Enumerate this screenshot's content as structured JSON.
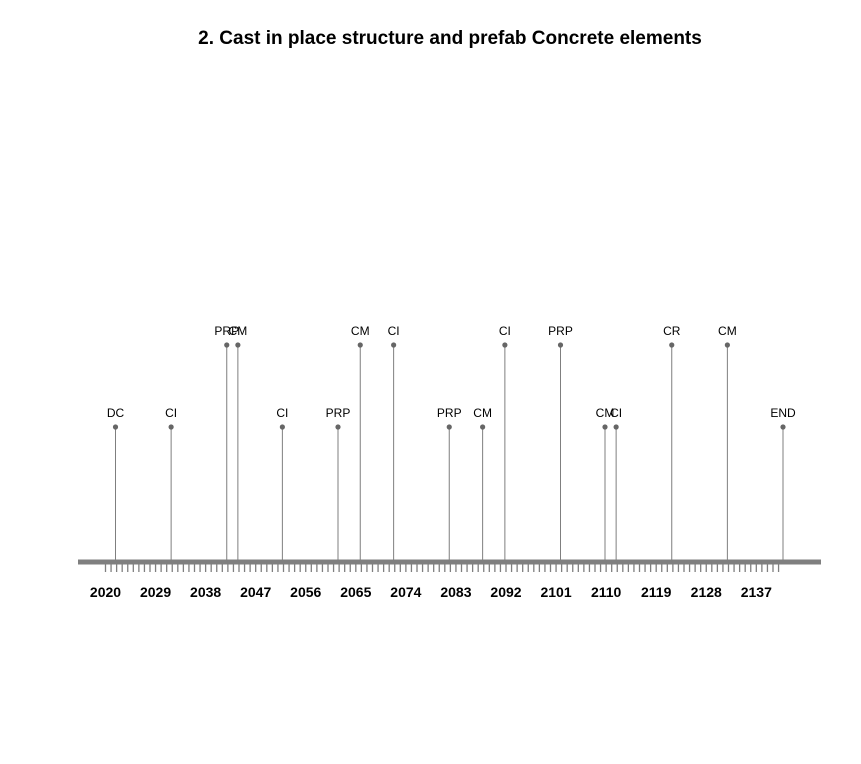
{
  "chart_data": {
    "type": "timeline",
    "title": "2. Cast in place structure and prefab Concrete elements",
    "x_range": [
      2016,
      2145
    ],
    "tick_labels": [
      2020,
      2029,
      2038,
      2047,
      2056,
      2065,
      2074,
      2083,
      2092,
      2101,
      2110,
      2119,
      2128,
      2137
    ],
    "minor_tick_range": [
      2020,
      2141
    ],
    "events": [
      {
        "year": 2020,
        "label": "DC",
        "level": "low"
      },
      {
        "year": 2030,
        "label": "CI",
        "level": "low"
      },
      {
        "year": 2040,
        "label": "PRP",
        "level": "high"
      },
      {
        "year": 2042,
        "label": "CM",
        "level": "high"
      },
      {
        "year": 2050,
        "label": "CI",
        "level": "low"
      },
      {
        "year": 2060,
        "label": "PRP",
        "level": "low"
      },
      {
        "year": 2064,
        "label": "CM",
        "level": "high"
      },
      {
        "year": 2070,
        "label": "CI",
        "level": "high"
      },
      {
        "year": 2080,
        "label": "PRP",
        "level": "low"
      },
      {
        "year": 2086,
        "label": "CM",
        "level": "low"
      },
      {
        "year": 2090,
        "label": "CI",
        "level": "high"
      },
      {
        "year": 2100,
        "label": "PRP",
        "level": "high"
      },
      {
        "year": 2108,
        "label": "CM",
        "level": "low"
      },
      {
        "year": 2110,
        "label": "CI",
        "level": "low"
      },
      {
        "year": 2120,
        "label": "CR",
        "level": "high"
      },
      {
        "year": 2130,
        "label": "CM",
        "level": "high"
      },
      {
        "year": 2140,
        "label": "END",
        "level": "low"
      }
    ],
    "colors": {
      "axis": "#7f7f7f",
      "stem": "#7f7f7f",
      "point": "#666666",
      "text": "#000000"
    }
  }
}
